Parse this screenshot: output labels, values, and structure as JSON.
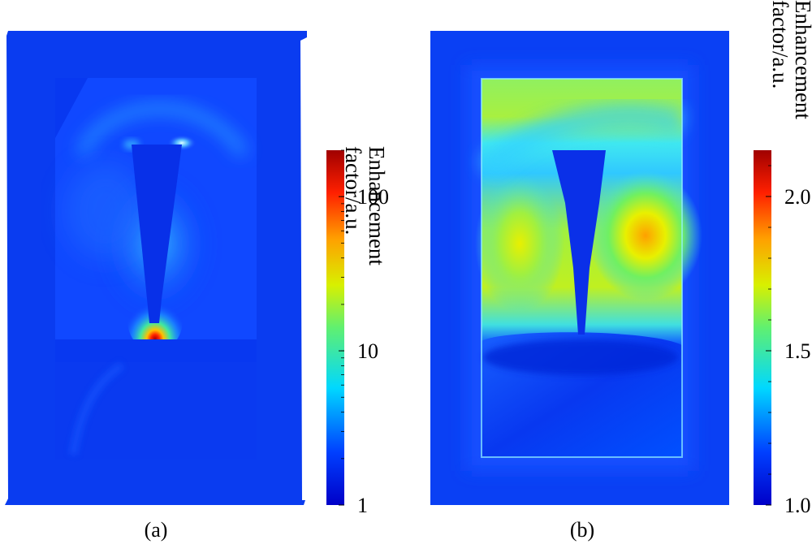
{
  "chart_data": [
    {
      "type": "heatmap",
      "panel_label": "(a)",
      "colorbar": {
        "label_line1": "Enhancement",
        "label_line2": "factor/a.u.",
        "scale": "log",
        "range": [
          1,
          200
        ],
        "ticks": [
          {
            "value": 1,
            "label": "1"
          },
          {
            "value": 10,
            "label": "10"
          },
          {
            "value": 100,
            "label": "100"
          }
        ]
      },
      "colormap": "jet",
      "max_field_location": "tip apex",
      "max_value": 200
    },
    {
      "type": "heatmap",
      "panel_label": "(b)",
      "colorbar": {
        "label_line1": "Enhancement",
        "label_line2": "factor/a.u.",
        "scale": "linear",
        "range": [
          1.0,
          2.15
        ],
        "ticks": [
          {
            "value": 1.0,
            "label": "1.0"
          },
          {
            "value": 1.5,
            "label": "1.5"
          },
          {
            "value": 2.0,
            "label": "2.0"
          }
        ]
      },
      "colormap": "jet",
      "max_field_location": "right lobe beside tip",
      "max_value": 1.85
    }
  ]
}
